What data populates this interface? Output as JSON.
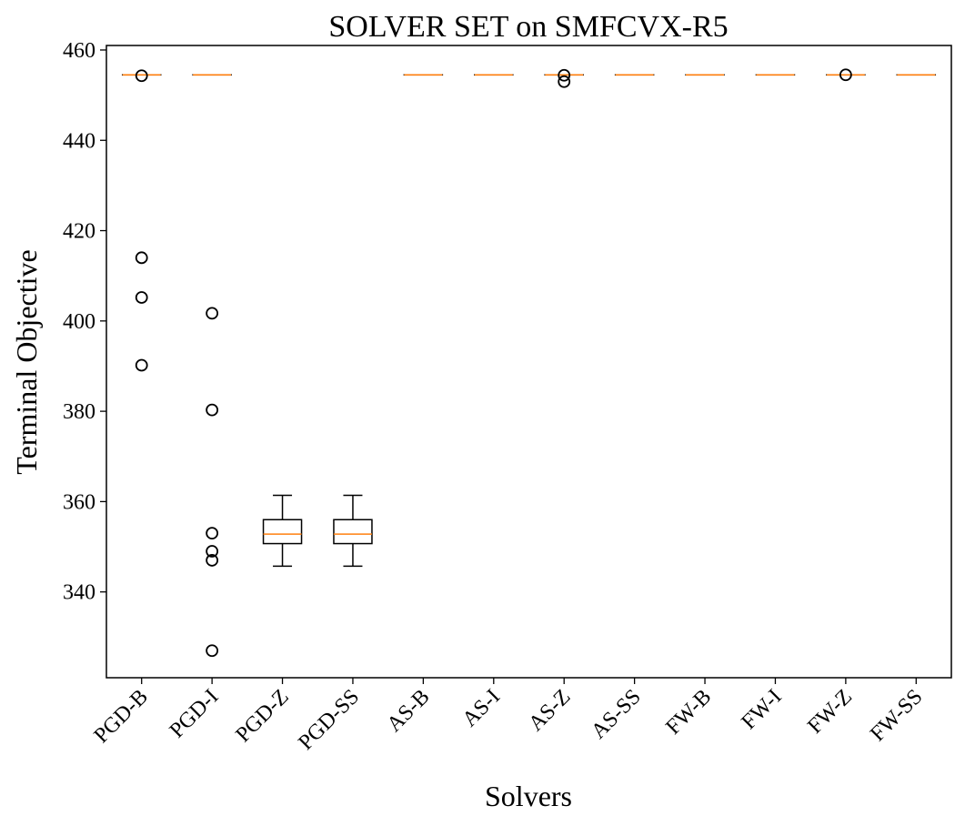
{
  "chart_data": {
    "type": "boxplot",
    "title": "SOLVER SET on SMFCVX-R5",
    "xlabel": "Solvers",
    "ylabel": "Terminal Objective",
    "ylim": [
      321,
      461
    ],
    "yticks": [
      340,
      360,
      380,
      400,
      420,
      440,
      460
    ],
    "grid": false,
    "colors": {
      "box": "#000000",
      "median": "#ff7f0e",
      "flier": "#000000"
    },
    "categories": [
      "PGD-B",
      "PGD-I",
      "PGD-Z",
      "PGD-SS",
      "AS-B",
      "AS-I",
      "AS-Z",
      "AS-SS",
      "FW-B",
      "FW-I",
      "FW-Z",
      "FW-SS"
    ],
    "boxes": [
      {
        "label": "PGD-B",
        "whislo": 454.5,
        "q1": 454.5,
        "med": 454.5,
        "q3": 454.5,
        "whishi": 454.5,
        "fliers": [
          454.3,
          414.0,
          405.2,
          390.2
        ]
      },
      {
        "label": "PGD-I",
        "whislo": 454.5,
        "q1": 454.5,
        "med": 454.5,
        "q3": 454.5,
        "whishi": 454.5,
        "fliers": [
          401.7,
          380.3,
          353.0,
          349.0,
          347.0,
          327.0
        ]
      },
      {
        "label": "PGD-Z",
        "whislo": 345.7,
        "q1": 350.7,
        "med": 352.8,
        "q3": 356.0,
        "whishi": 361.4,
        "fliers": []
      },
      {
        "label": "PGD-SS",
        "whislo": 345.7,
        "q1": 350.7,
        "med": 352.8,
        "q3": 356.0,
        "whishi": 361.4,
        "fliers": []
      },
      {
        "label": "AS-B",
        "whislo": 454.5,
        "q1": 454.5,
        "med": 454.5,
        "q3": 454.5,
        "whishi": 454.5,
        "fliers": []
      },
      {
        "label": "AS-I",
        "whislo": 454.5,
        "q1": 454.5,
        "med": 454.5,
        "q3": 454.5,
        "whishi": 454.5,
        "fliers": []
      },
      {
        "label": "AS-Z",
        "whislo": 454.5,
        "q1": 454.5,
        "med": 454.5,
        "q3": 454.5,
        "whishi": 454.5,
        "fliers": [
          454.4,
          453.0
        ]
      },
      {
        "label": "AS-SS",
        "whislo": 454.5,
        "q1": 454.5,
        "med": 454.5,
        "q3": 454.5,
        "whishi": 454.5,
        "fliers": []
      },
      {
        "label": "FW-B",
        "whislo": 454.5,
        "q1": 454.5,
        "med": 454.5,
        "q3": 454.5,
        "whishi": 454.5,
        "fliers": []
      },
      {
        "label": "FW-I",
        "whislo": 454.5,
        "q1": 454.5,
        "med": 454.5,
        "q3": 454.5,
        "whishi": 454.5,
        "fliers": []
      },
      {
        "label": "FW-Z",
        "whislo": 454.5,
        "q1": 454.5,
        "med": 454.5,
        "q3": 454.5,
        "whishi": 454.5,
        "fliers": [
          454.5
        ]
      },
      {
        "label": "FW-SS",
        "whislo": 454.5,
        "q1": 454.5,
        "med": 454.5,
        "q3": 454.5,
        "whishi": 454.5,
        "fliers": []
      }
    ]
  }
}
